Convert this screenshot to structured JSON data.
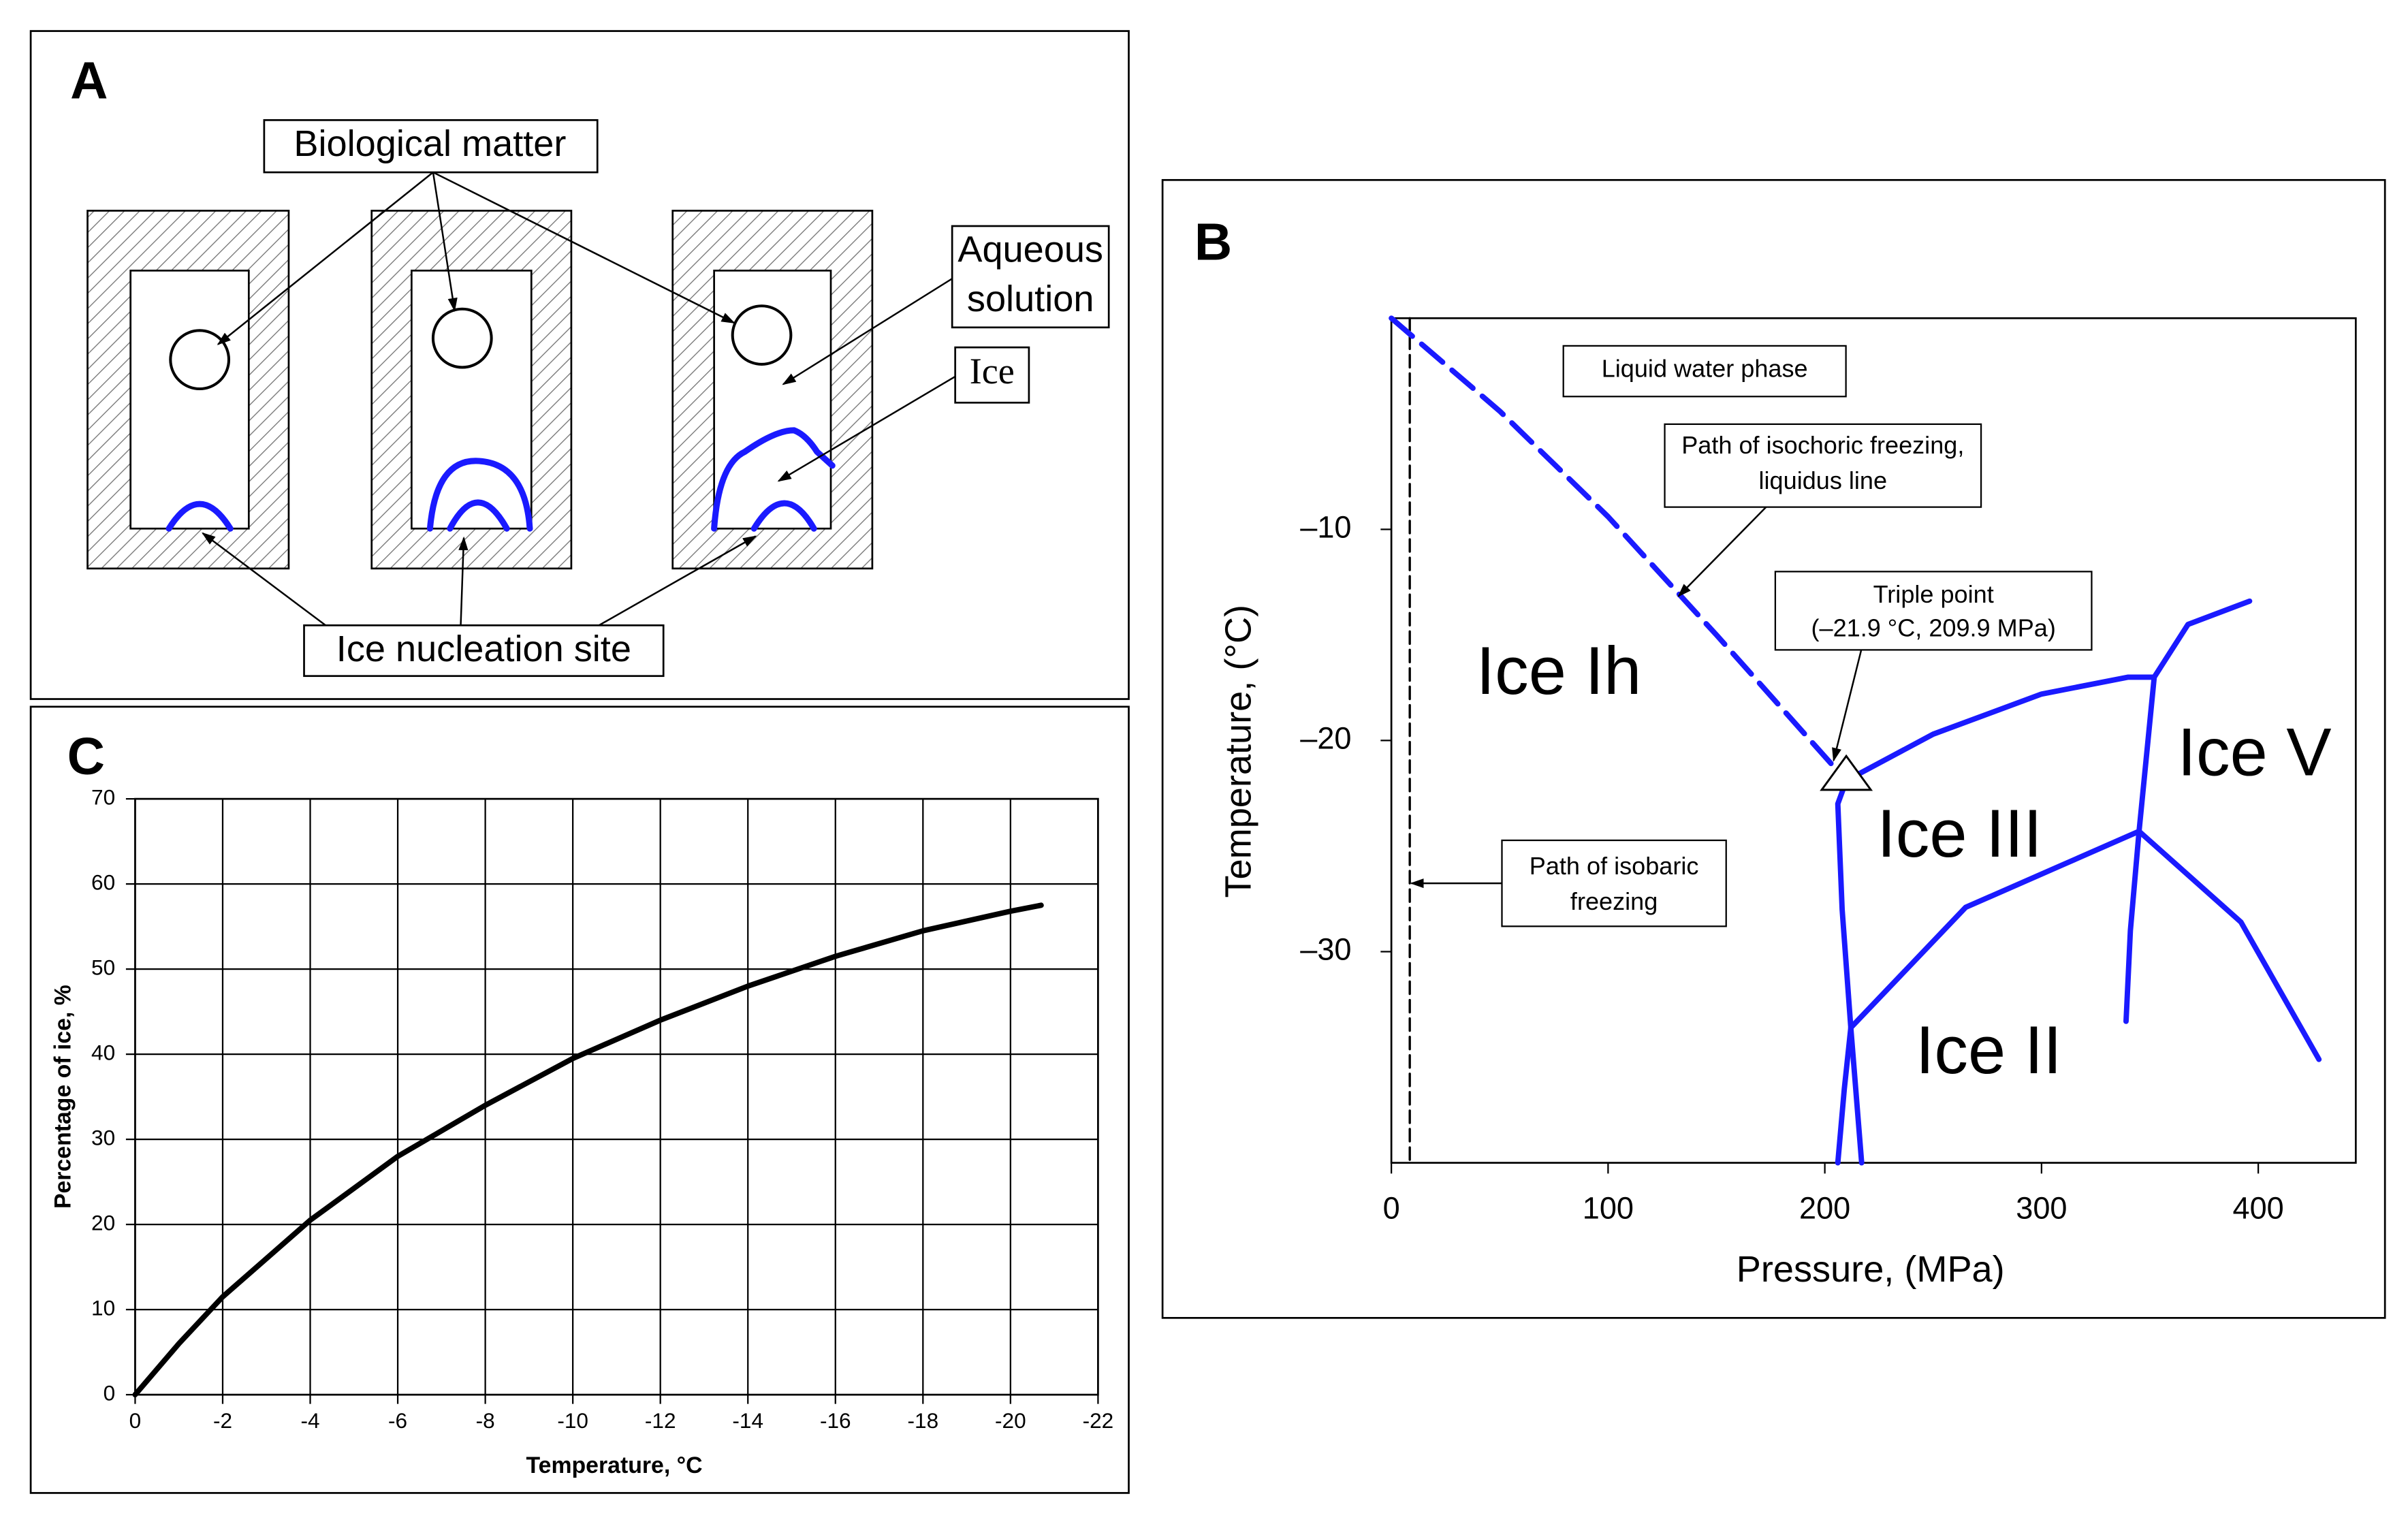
{
  "diagram": {
    "panel": "A",
    "biological_matter": "Biological matter",
    "aqueous_solution": [
      "Aqueous",
      "solution"
    ],
    "ice": "Ice",
    "ice_nucleation_site": "Ice nucleation site"
  },
  "chart_data": [
    {
      "type": "line",
      "panel": "B",
      "xlabel": "Pressure, (MPa)",
      "ylabel": "Temperature, (°C)",
      "xlim": [
        0,
        445
      ],
      "xticks": [
        0,
        100,
        200,
        300,
        400
      ],
      "ylim": [
        -40,
        0
      ],
      "yticks": [
        {
          "value": -10,
          "label": "–10"
        },
        {
          "value": -20,
          "label": "–20"
        },
        {
          "value": -30,
          "label": "–30"
        }
      ],
      "grid": false,
      "series": [
        {
          "color": "#000000",
          "dash": true,
          "width": 1.5,
          "x": [
            8.5,
            8.5
          ],
          "values": [
            0,
            -40
          ]
        },
        {
          "color": "#1a1aff",
          "dash": true,
          "width": 3.5,
          "x": [
            0,
            50,
            100,
            150,
            209.9
          ],
          "values": [
            0,
            -4.4,
            -9.4,
            -15.0,
            -21.9
          ]
        },
        {
          "color": "#1a1aff",
          "dash": false,
          "width": 3.5,
          "x": [
            209.9,
            206,
            208,
            212,
            217
          ],
          "values": [
            -21.9,
            -23,
            -28,
            -33.6,
            -40
          ]
        },
        {
          "color": "#1a1aff",
          "dash": false,
          "width": 3.5,
          "x": [
            212,
            209,
            206
          ],
          "values": [
            -33.6,
            -36.5,
            -40
          ]
        },
        {
          "color": "#1a1aff",
          "dash": false,
          "width": 3.5,
          "x": [
            209.9,
            250,
            300,
            340,
            352
          ],
          "values": [
            -21.9,
            -19.7,
            -17.8,
            -17.0,
            -17.0
          ]
        },
        {
          "color": "#1a1aff",
          "dash": false,
          "width": 3.5,
          "x": [
            352,
            367.6,
            396
          ],
          "values": [
            -17.0,
            -14.5,
            -13.4
          ]
        },
        {
          "color": "#1a1aff",
          "dash": false,
          "width": 3.5,
          "x": [
            352,
            345,
            341,
            339
          ],
          "values": [
            -17.0,
            -24.3,
            -29,
            -33.3
          ]
        },
        {
          "color": "#1a1aff",
          "dash": false,
          "width": 3.5,
          "x": [
            212,
            265,
            345
          ],
          "values": [
            -33.6,
            -27.9,
            -24.3
          ]
        },
        {
          "color": "#1a1aff",
          "dash": false,
          "width": 3.5,
          "x": [
            345,
            392,
            428
          ],
          "values": [
            -24.3,
            -28.6,
            -35.1
          ]
        }
      ],
      "triple_point": {
        "x": 209.9,
        "y": -21.9
      },
      "annotations": [
        {
          "text": [
            "Liquid water phase"
          ]
        },
        {
          "text": [
            "Path of isochoric freezing,",
            "liquidus line"
          ]
        },
        {
          "text": [
            "Triple point",
            "(–21.9 °C, 209.9 MPa)"
          ]
        },
        {
          "text": [
            "Path of isobaric",
            "freezing"
          ]
        }
      ],
      "region_labels": [
        "Ice Ih",
        "Ice III",
        "Ice V",
        "Ice II"
      ]
    },
    {
      "type": "line",
      "panel": "C",
      "xlabel": "Temperature, °C",
      "ylabel": "Percentage of ice, %",
      "xlim": [
        0,
        -22
      ],
      "xticks": [
        0,
        -2,
        -4,
        -6,
        -8,
        -10,
        -12,
        -14,
        -16,
        -18,
        -20,
        -22
      ],
      "ylim": [
        0,
        70
      ],
      "yticks": [
        0,
        10,
        20,
        30,
        40,
        50,
        60,
        70
      ],
      "grid": true,
      "series": [
        {
          "color": "#000000",
          "dash": false,
          "width": 3.5,
          "x": [
            0,
            -1,
            -2,
            -4,
            -6,
            -8,
            -10,
            -12,
            -14,
            -16,
            -18,
            -20,
            -20.7
          ],
          "values": [
            0,
            6,
            11.5,
            20.5,
            28,
            34,
            39.5,
            44,
            48,
            51.5,
            54.5,
            56.8,
            57.5
          ]
        }
      ]
    }
  ]
}
